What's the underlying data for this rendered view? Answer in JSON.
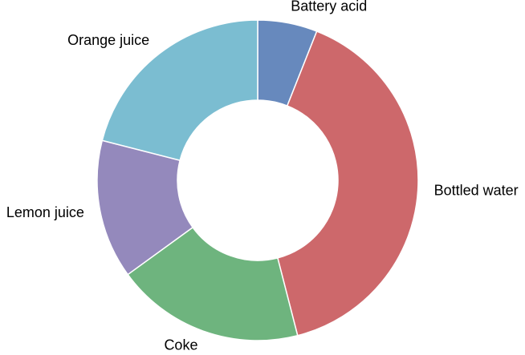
{
  "chart_data": {
    "type": "pie",
    "variant": "donut",
    "categories": [
      "Battery acid",
      "Bottled water",
      "Coke",
      "Lemon juice",
      "Orange juice"
    ],
    "values": [
      6,
      40,
      19,
      14,
      21
    ],
    "colors": [
      "#6789bd",
      "#cd686b",
      "#6eb47e",
      "#9489bc",
      "#7bbdd1"
    ],
    "start": "top",
    "direction": "clockwise",
    "legend": "none"
  }
}
